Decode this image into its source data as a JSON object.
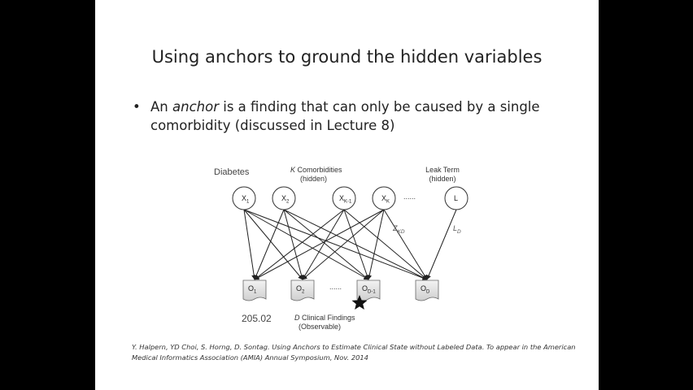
{
  "title": "Using anchors to ground the hidden variables",
  "bullet": {
    "marker": "•",
    "pre": "An ",
    "emphasis": "anchor",
    "post": " is a finding that can only be caused by a single comorbidity (discussed in Lecture 8)"
  },
  "diagram": {
    "diabetes_label": "Diabetes",
    "comorbidities_label_var": "K",
    "comorbidities_label_rest": " Comorbidities",
    "comorbidities_hidden": "(hidden)",
    "leak_label": "Leak Term",
    "leak_hidden": "(hidden)",
    "dots_top": "......",
    "dots_bottom": "......",
    "hidden_nodes": [
      {
        "main": "X",
        "sub": "1"
      },
      {
        "main": "X",
        "sub": "2"
      },
      {
        "main": "X",
        "sub": "K-1"
      },
      {
        "main": "X",
        "sub": "K"
      },
      {
        "main": "L",
        "sub": ""
      }
    ],
    "finding_nodes": [
      {
        "main": "O",
        "sub": "1"
      },
      {
        "main": "O",
        "sub": "2"
      },
      {
        "main": "O",
        "sub": "D-1"
      },
      {
        "main": "O",
        "sub": "D"
      }
    ],
    "edge_label_z": {
      "main": "Z",
      "sub": "KD"
    },
    "edge_label_l": {
      "main": "L",
      "sub": "D"
    },
    "anchor_code": "205.02",
    "findings_label_var": "D",
    "findings_label_rest": " Clinical Findings",
    "findings_observable": "(Observable)"
  },
  "citation": "Y. Halpern, YD Choi, S. Horng, D. Sontag. Using Anchors to Estimate Clinical State without Labeled Data. To appear in the American Medical Informatics Association (AMIA) Annual Symposium, Nov. 2014"
}
